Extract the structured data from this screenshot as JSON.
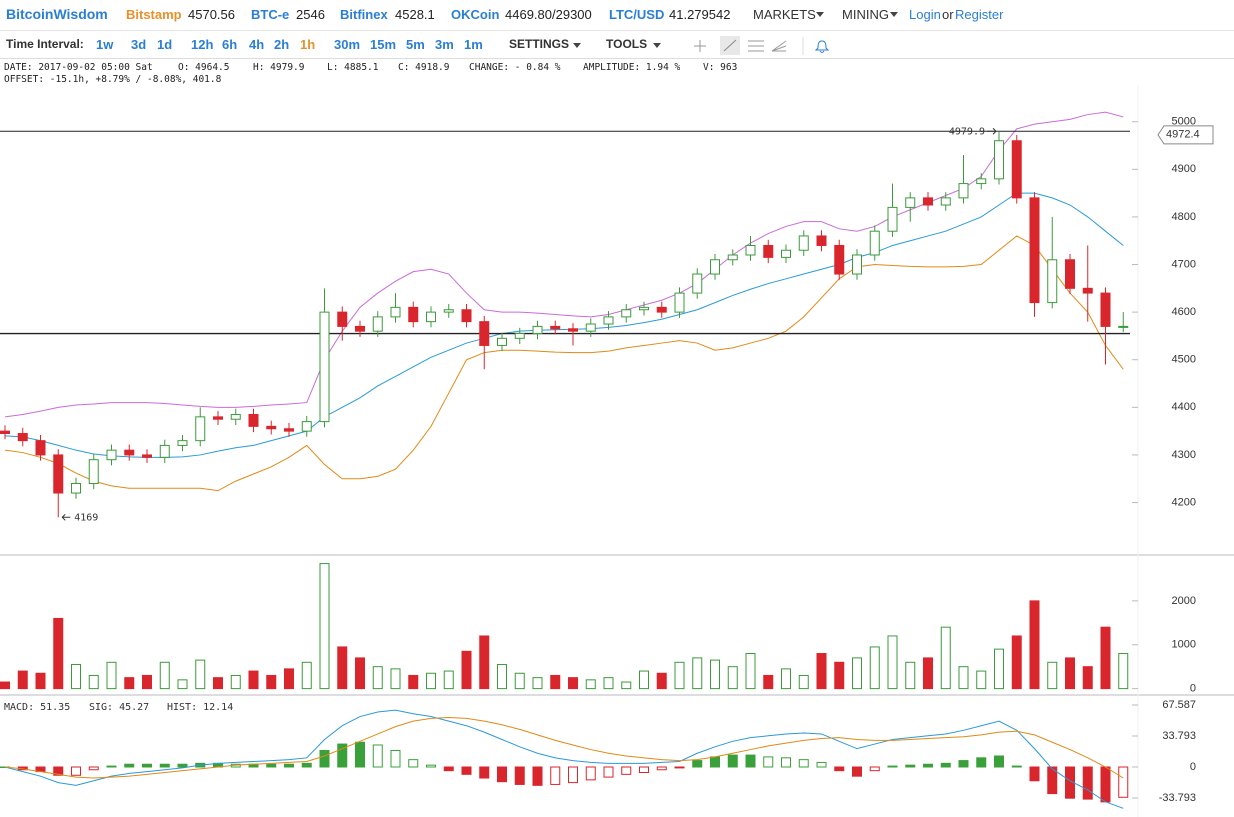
{
  "header": {
    "brand": "BitcoinWisdom",
    "exchanges": [
      {
        "name": "Bitstamp",
        "price": 4570.56
      },
      {
        "name": "BTC-e",
        "price": 2546
      },
      {
        "name": "Bitfinex",
        "price": 4528.1
      },
      {
        "name": "OKCoin",
        "price": "4469.80/29300"
      },
      {
        "name": "LTC/USD",
        "price": 41.279542
      }
    ],
    "menus": [
      "MARKETS",
      "MINING"
    ],
    "login": "Login",
    "or": "or",
    "register": "Register"
  },
  "toolbar": {
    "label": "Time Interval:",
    "intervals": [
      "1w",
      "3d",
      "1d",
      "12h",
      "6h",
      "4h",
      "2h",
      "1h",
      "30m",
      "15m",
      "5m",
      "3m",
      "1m"
    ],
    "settings": "SETTINGS",
    "tools": "TOOLS"
  },
  "info": {
    "line1": [
      "DATE: 2017-09-02 05:00 Sat",
      "O: 4964.5",
      "H: 4979.9",
      "L: 4885.1",
      "C: 4918.9",
      "CHANGE: - 0.84 %",
      "AMPLITUDE: 1.94 %",
      "V: 963"
    ],
    "line2": "OFFSET: -15.1h, +8.79% / -8.08%, 401.8"
  },
  "chart_data": [
    {
      "type": "candlestick",
      "up_color": "#3c9a3c",
      "down_color": "#d9262c",
      "open": [
        4350,
        4345,
        4330,
        4300,
        4220,
        4240,
        4290,
        4310,
        4300,
        4295,
        4320,
        4330,
        4380,
        4375,
        4385,
        4360,
        4355,
        4350,
        4370,
        4600,
        4570,
        4560,
        4590,
        4610,
        4580,
        4600,
        4605,
        4580,
        4530,
        4545,
        4555,
        4570,
        4565,
        4560,
        4575,
        4590,
        4605,
        4610,
        4600,
        4640,
        4680,
        4710,
        4720,
        4740,
        4715,
        4730,
        4760,
        4740,
        4680,
        4720,
        4770,
        4820,
        4840,
        4825,
        4840,
        4870,
        4880,
        4960,
        4840,
        4620,
        4710,
        4650,
        4640,
        4570
      ],
      "high": [
        4362,
        4357,
        4342,
        4312,
        4252,
        4302,
        4322,
        4322,
        4312,
        4332,
        4342,
        4400,
        4392,
        4397,
        4397,
        4372,
        4367,
        4382,
        4650,
        4612,
        4582,
        4602,
        4640,
        4622,
        4612,
        4617,
        4617,
        4592,
        4557,
        4567,
        4582,
        4582,
        4577,
        4587,
        4602,
        4617,
        4622,
        4622,
        4652,
        4692,
        4722,
        4732,
        4760,
        4752,
        4742,
        4772,
        4772,
        4752,
        4732,
        4782,
        4870,
        4852,
        4852,
        4852,
        4930,
        4892,
        4979.9,
        4972,
        4852,
        4800,
        4722,
        4740,
        4652,
        4600
      ],
      "low": [
        4333,
        4318,
        4288,
        4169,
        4208,
        4228,
        4278,
        4288,
        4283,
        4283,
        4308,
        4318,
        4363,
        4363,
        4348,
        4343,
        4338,
        4338,
        4358,
        4540,
        4548,
        4548,
        4578,
        4568,
        4568,
        4588,
        4568,
        4480,
        4518,
        4533,
        4543,
        4553,
        4530,
        4548,
        4563,
        4578,
        4593,
        4588,
        4588,
        4628,
        4668,
        4698,
        4708,
        4703,
        4703,
        4718,
        4728,
        4668,
        4668,
        4708,
        4758,
        4790,
        4813,
        4813,
        4828,
        4858,
        4868,
        4828,
        4590,
        4608,
        4638,
        4580,
        4490,
        4558
      ],
      "close": [
        4345,
        4330,
        4300,
        4220,
        4240,
        4290,
        4310,
        4300,
        4295,
        4320,
        4330,
        4380,
        4375,
        4385,
        4360,
        4355,
        4350,
        4370,
        4600,
        4570,
        4560,
        4590,
        4610,
        4580,
        4600,
        4605,
        4580,
        4530,
        4545,
        4555,
        4570,
        4565,
        4560,
        4575,
        4590,
        4605,
        4610,
        4600,
        4640,
        4680,
        4710,
        4720,
        4740,
        4715,
        4730,
        4760,
        4740,
        4680,
        4720,
        4770,
        4820,
        4840,
        4825,
        4840,
        4870,
        4880,
        4960,
        4840,
        4620,
        4710,
        4650,
        4640,
        4570,
        4570
      ],
      "bands": [
        {
          "color": "#c86dd7",
          "values": [
            4380,
            4385,
            4392,
            4400,
            4405,
            4407,
            4410,
            4410,
            4410,
            4408,
            4405,
            4402,
            4400,
            4400,
            4402,
            4405,
            4407,
            4410,
            4500,
            4560,
            4610,
            4640,
            4665,
            4685,
            4690,
            4680,
            4640,
            4605,
            4600,
            4600,
            4598,
            4595,
            4592,
            4590,
            4595,
            4605,
            4615,
            4625,
            4640,
            4660,
            4690,
            4720,
            4745,
            4765,
            4780,
            4790,
            4790,
            4775,
            4770,
            4780,
            4800,
            4815,
            4830,
            4845,
            4860,
            4885,
            4940,
            4985,
            4995,
            5000,
            5005,
            5015,
            5020,
            5010
          ]
        },
        {
          "color": "#2a9ad6",
          "values": [
            4340,
            4338,
            4330,
            4320,
            4310,
            4302,
            4298,
            4296,
            4295,
            4295,
            4296,
            4300,
            4308,
            4315,
            4320,
            4330,
            4340,
            4350,
            4380,
            4400,
            4420,
            4445,
            4465,
            4485,
            4505,
            4520,
            4535,
            4545,
            4555,
            4560,
            4562,
            4563,
            4564,
            4565,
            4568,
            4572,
            4578,
            4585,
            4595,
            4605,
            4620,
            4635,
            4648,
            4660,
            4670,
            4680,
            4690,
            4700,
            4715,
            4725,
            4740,
            4750,
            4760,
            4770,
            4785,
            4800,
            4825,
            4850,
            4850,
            4840,
            4825,
            4800,
            4770,
            4740
          ]
        },
        {
          "color": "#e08a16",
          "values": [
            4310,
            4305,
            4295,
            4282,
            4262,
            4245,
            4235,
            4230,
            4230,
            4230,
            4230,
            4230,
            4225,
            4245,
            4260,
            4275,
            4295,
            4320,
            4280,
            4250,
            4250,
            4255,
            4270,
            4310,
            4360,
            4430,
            4500,
            4515,
            4520,
            4520,
            4518,
            4516,
            4515,
            4515,
            4518,
            4525,
            4530,
            4535,
            4540,
            4535,
            4520,
            4525,
            4535,
            4545,
            4560,
            4590,
            4630,
            4670,
            4695,
            4700,
            4698,
            4696,
            4695,
            4695,
            4696,
            4700,
            4730,
            4760,
            4740,
            4690,
            4640,
            4600,
            4530,
            4480
          ]
        }
      ],
      "hlines": [
        4979.9,
        4555
      ],
      "price_label": 4972.4,
      "ylim": [
        4094,
        5075
      ],
      "yticks": [
        4200,
        4300,
        4400,
        4500,
        4600,
        4700,
        4800,
        4900,
        5000
      ]
    },
    {
      "type": "bar",
      "values": [
        150,
        400,
        350,
        1600,
        550,
        300,
        600,
        250,
        300,
        600,
        200,
        650,
        250,
        300,
        400,
        300,
        450,
        600,
        2850,
        950,
        700,
        500,
        450,
        300,
        350,
        400,
        850,
        1200,
        550,
        350,
        250,
        300,
        250,
        200,
        250,
        150,
        400,
        350,
        600,
        700,
        650,
        500,
        800,
        300,
        450,
        300,
        800,
        600,
        700,
        950,
        1200,
        600,
        700,
        1400,
        500,
        400,
        900,
        1200,
        2000,
        600,
        700,
        500,
        1400,
        800
      ],
      "ylim": [
        -100,
        3000
      ],
      "yticks": [
        0,
        1000,
        2000
      ]
    },
    {
      "type": "macd",
      "macd_color": "#2a9ad6",
      "signal_color": "#e08a16",
      "up_color": "#3aa03a",
      "down_color": "#d9262c",
      "labels": [
        "MACD: 51.35",
        "SIG: 45.27",
        "HIST: 12.14"
      ],
      "macd": [
        0,
        -5,
        -10,
        -17,
        -20,
        -15,
        -10,
        -7,
        -5,
        -3,
        -1,
        2,
        4,
        5,
        6,
        7,
        8,
        10,
        30,
        45,
        55,
        60,
        62,
        58,
        55,
        50,
        45,
        38,
        30,
        22,
        15,
        10,
        7,
        5,
        4,
        4,
        4,
        5,
        6,
        15,
        22,
        28,
        32,
        34,
        36,
        37,
        36,
        28,
        20,
        25,
        30,
        32,
        34,
        36,
        40,
        45,
        50,
        40,
        20,
        -2,
        -15,
        -25,
        -38,
        -45
      ],
      "signal": [
        0,
        -2,
        -5,
        -8,
        -11,
        -12,
        -11,
        -10,
        -8,
        -6,
        -4,
        -2,
        0,
        2,
        3,
        4,
        5,
        6,
        12,
        20,
        28,
        36,
        44,
        50,
        53,
        54,
        53,
        50,
        46,
        41,
        35,
        29,
        24,
        19,
        15,
        12,
        10,
        8,
        7,
        8,
        11,
        15,
        19,
        23,
        26,
        29,
        31,
        32,
        30,
        29,
        29,
        30,
        31,
        32,
        33,
        35,
        38,
        39,
        35,
        27,
        19,
        10,
        0,
        -12
      ],
      "hist": [
        0,
        -3,
        -5,
        -9,
        -9,
        -3,
        1,
        3,
        3,
        3,
        3,
        4,
        4,
        3,
        3,
        3,
        3,
        4,
        18,
        25,
        27,
        24,
        18,
        8,
        2,
        -4,
        -8,
        -12,
        -16,
        -19,
        -20,
        -19,
        -17,
        -14,
        -11,
        -8,
        -6,
        -3,
        -1,
        7,
        11,
        13,
        13,
        11,
        10,
        8,
        5,
        -4,
        -10,
        -4,
        1,
        2,
        3,
        4,
        7,
        10,
        12,
        1,
        -15,
        -29,
        -34,
        -35,
        -38,
        -33
      ],
      "ylim": [
        -54.5,
        76.3
      ],
      "yticks": [
        67.587,
        33.793,
        0,
        -33.793
      ]
    }
  ]
}
